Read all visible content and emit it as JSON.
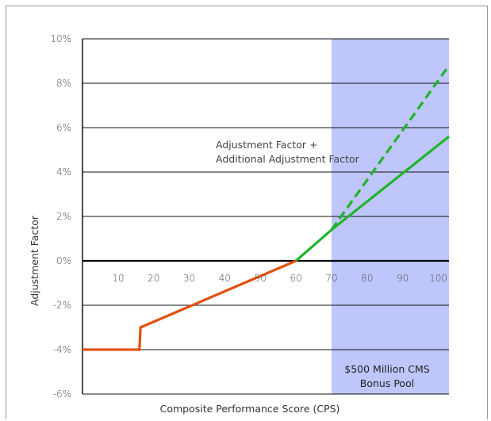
{
  "chart_data": {
    "type": "line",
    "title": "",
    "xlabel": "Composite Performance Score (CPS)",
    "ylabel": "Adjustment Factor",
    "xlim": [
      0,
      103
    ],
    "ylim": [
      -6,
      10
    ],
    "x_ticks": [
      "10",
      "20",
      "30",
      "40",
      "50",
      "60",
      "70",
      "80",
      "90",
      "100"
    ],
    "x_tick_values": [
      10,
      20,
      30,
      40,
      50,
      60,
      70,
      80,
      90,
      100
    ],
    "y_ticks": [
      "10%",
      "8%",
      "6%",
      "4%",
      "2%",
      "0%",
      "-2%",
      "-4%",
      "-6%"
    ],
    "y_tick_values": [
      10,
      8,
      6,
      4,
      2,
      0,
      -2,
      -4,
      -6
    ],
    "grid": "horizontal",
    "shaded_region": {
      "x_from": 70,
      "x_to": 103,
      "color": "#bfc6fb",
      "label_line1": "$500 Million CMS",
      "label_line2": "Bonus Pool"
    },
    "annotation": {
      "line1": "Adjustment Factor +",
      "line2": "Additional Adjustment Factor"
    },
    "series": [
      {
        "style": "solid",
        "color": "#e2500f",
        "points": [
          [
            0,
            -4
          ],
          [
            16,
            -4
          ],
          [
            16.3,
            -3
          ],
          [
            60,
            0
          ]
        ]
      },
      {
        "style": "solid",
        "color": "#1fb52a",
        "points": [
          [
            60,
            0
          ],
          [
            70,
            1.4
          ],
          [
            103,
            5.6
          ]
        ]
      },
      {
        "style": "dashed",
        "color": "#1fb52a",
        "points": [
          [
            70,
            1.4
          ],
          [
            103,
            8.8
          ]
        ]
      }
    ]
  }
}
